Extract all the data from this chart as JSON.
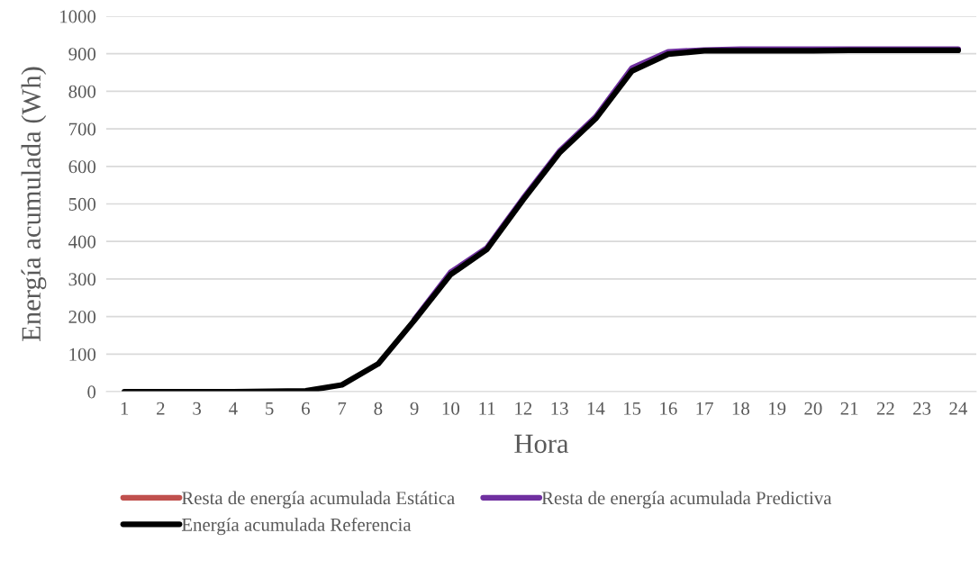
{
  "chart_data": {
    "type": "line",
    "xlabel": "Hora",
    "ylabel": "Energía acumulada (Wh)",
    "categories": [
      "1",
      "2",
      "3",
      "4",
      "5",
      "6",
      "7",
      "8",
      "9",
      "10",
      "11",
      "12",
      "13",
      "14",
      "15",
      "16",
      "17",
      "18",
      "19",
      "20",
      "21",
      "22",
      "23",
      "24"
    ],
    "series": [
      {
        "name": "Resta de energía acumulada Estática",
        "color": "#c0504d",
        "values": [
          null,
          null,
          null,
          null,
          null,
          null,
          null,
          null,
          null,
          null,
          null,
          null,
          null,
          null,
          null,
          null,
          null,
          null,
          null,
          null,
          null,
          null,
          null,
          null
        ]
      },
      {
        "name": "Resta de energía acumulada Predictiva",
        "color": "#7030a0",
        "values": [
          null,
          null,
          null,
          null,
          null,
          null,
          null,
          null,
          192,
          318,
          383,
          515,
          640,
          732,
          862,
          905,
          910,
          912,
          912,
          912,
          912,
          912,
          912,
          912
        ]
      },
      {
        "name": "Energía acumulada Referencia",
        "color": "#000000",
        "values": [
          0,
          0,
          0,
          0,
          1,
          2,
          18,
          74,
          190,
          312,
          379,
          511,
          636,
          727,
          854,
          899,
          908,
          908,
          908,
          908,
          909,
          909,
          909,
          909
        ]
      }
    ],
    "ylim": [
      0,
      1000
    ],
    "yticks": [
      0,
      100,
      200,
      300,
      400,
      500,
      600,
      700,
      800,
      900,
      1000
    ],
    "grid": "y",
    "legend": "bottom",
    "marker": "none",
    "line_style": "solid"
  }
}
